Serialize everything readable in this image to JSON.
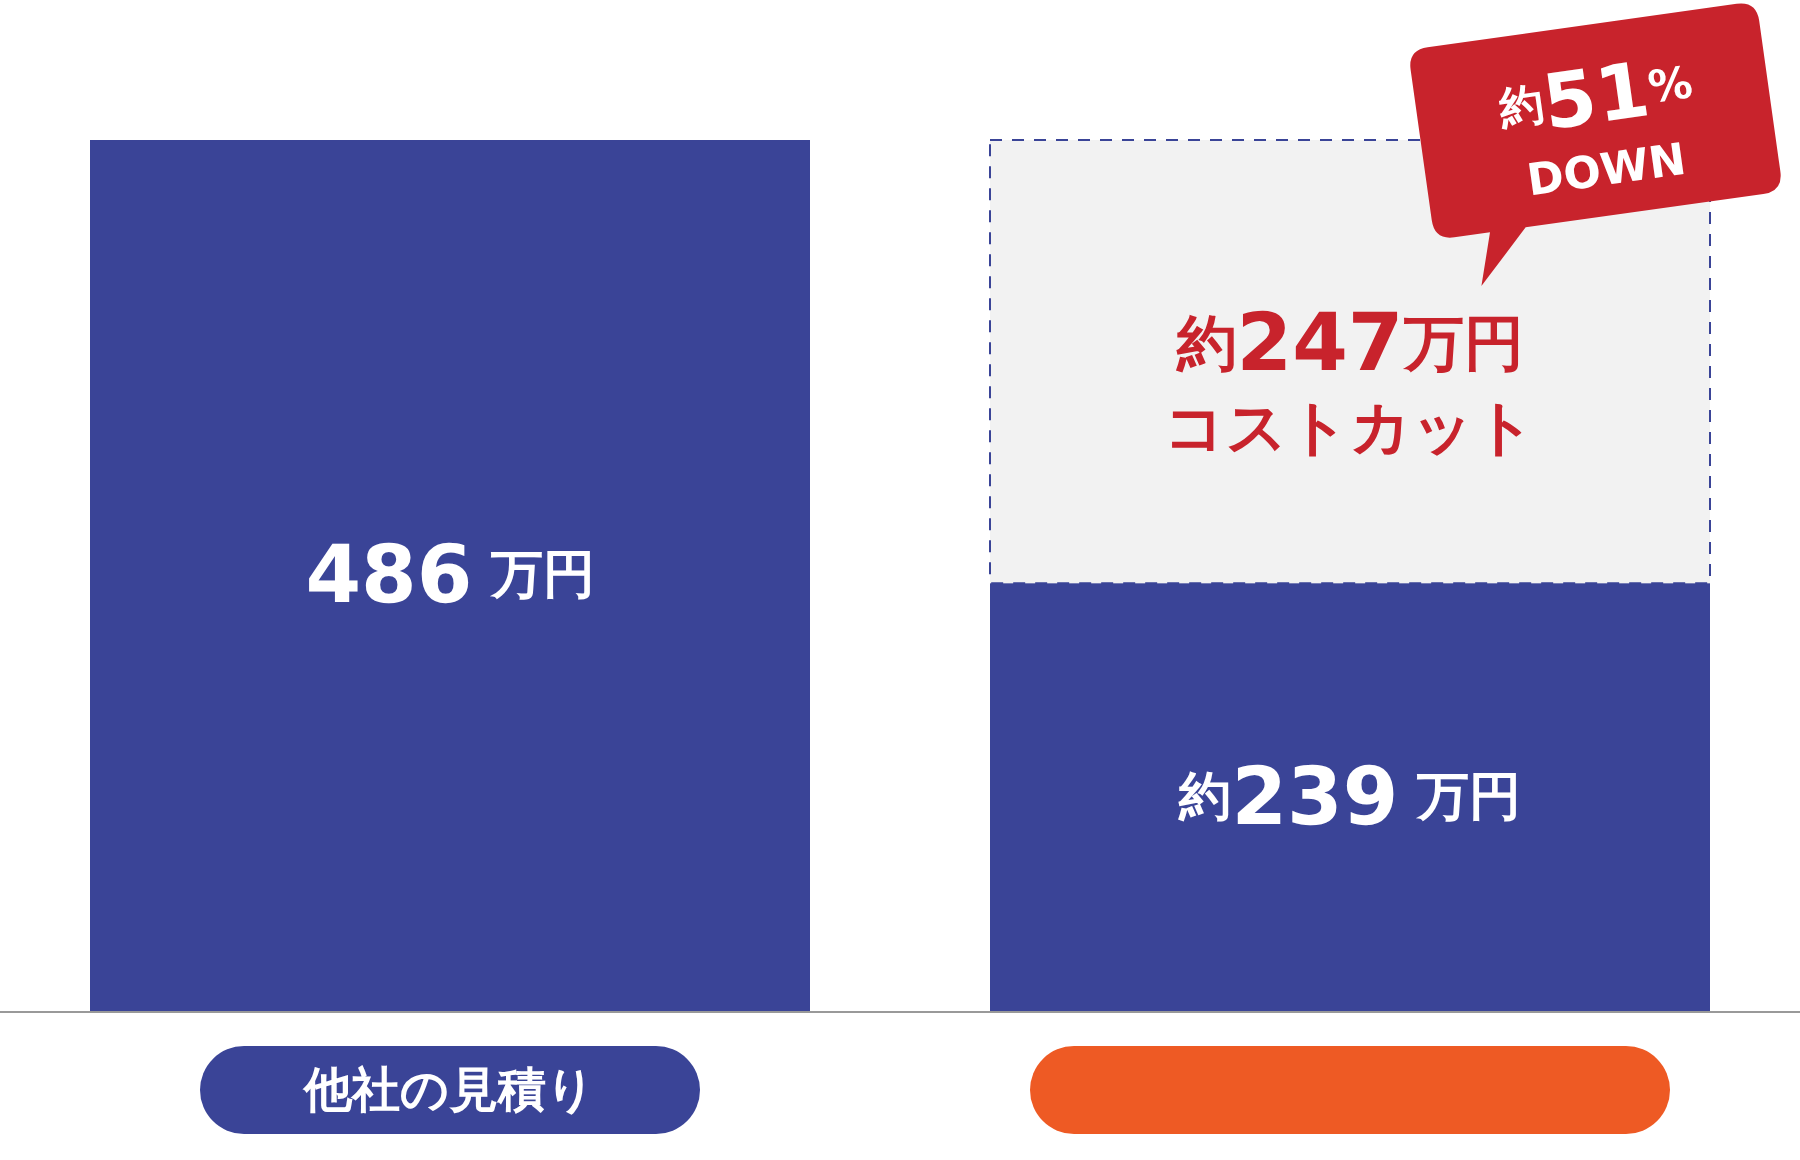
{
  "chart_data": {
    "type": "bar",
    "stacked": true,
    "categories": [
      "他社の見積り",
      null
    ],
    "series": [
      {
        "color": "#3a4497",
        "values": [
          486,
          239
        ],
        "value_labels": [
          "486 万円",
          "約239 万円"
        ]
      },
      {
        "color": "#f2f2f2",
        "values": [
          null,
          247
        ],
        "value_labels": [
          null,
          "約247万円コストカット"
        ]
      }
    ],
    "annotations": [
      "約51% DOWN"
    ]
  }
}
